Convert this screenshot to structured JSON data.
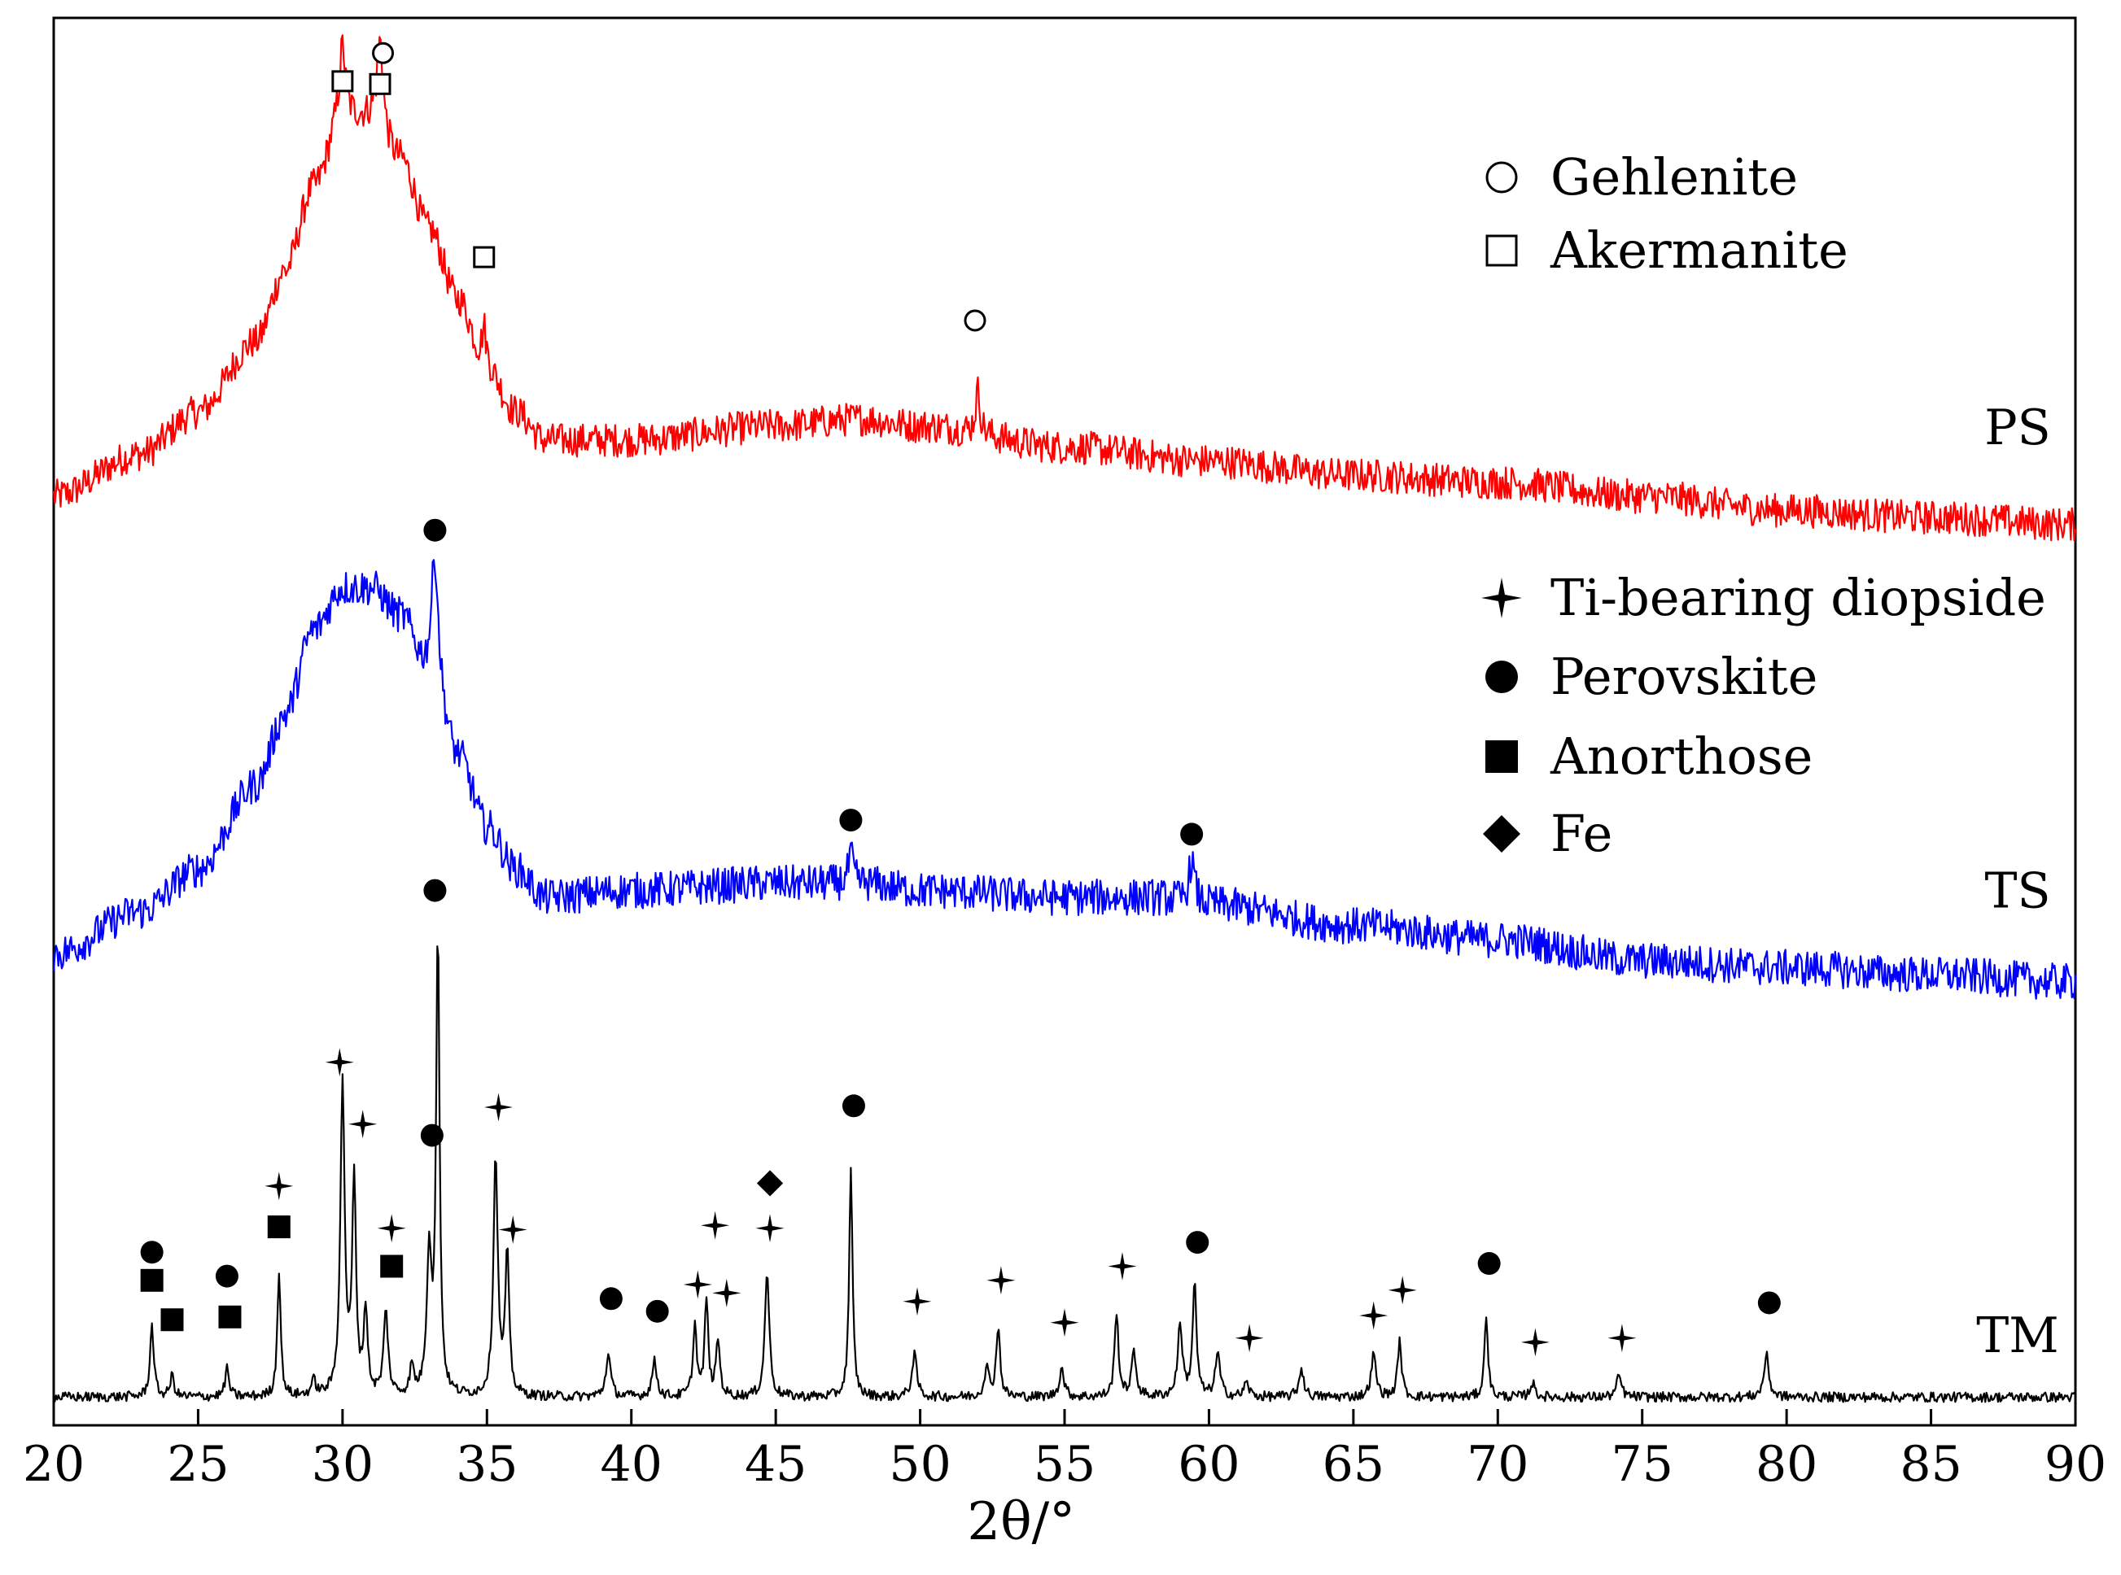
{
  "chart_data": {
    "type": "line",
    "xlabel": "2θ/°",
    "xlim": [
      20,
      90
    ],
    "xticks": [
      20,
      25,
      30,
      35,
      40,
      45,
      50,
      55,
      60,
      65,
      70,
      75,
      80,
      85,
      90
    ],
    "yaxis": "intensity (a.u., stacked, no ticks)",
    "series": [
      {
        "name": "PS",
        "color": "#ff0000",
        "baseline": 0.66,
        "noise": 0.012,
        "background": [
          [
            20,
            0.0
          ],
          [
            23,
            0.03
          ],
          [
            25,
            0.06
          ],
          [
            27,
            0.11
          ],
          [
            28,
            0.16
          ],
          [
            29,
            0.22
          ],
          [
            30,
            0.27
          ],
          [
            31,
            0.27
          ],
          [
            32,
            0.24
          ],
          [
            33,
            0.19
          ],
          [
            34,
            0.14
          ],
          [
            35,
            0.09
          ],
          [
            36,
            0.06
          ],
          [
            37,
            0.04
          ],
          [
            40,
            0.04
          ],
          [
            45,
            0.05
          ],
          [
            48,
            0.055
          ],
          [
            50,
            0.05
          ],
          [
            55,
            0.035
          ],
          [
            60,
            0.025
          ],
          [
            65,
            0.015
          ],
          [
            70,
            0.01
          ],
          [
            75,
            0.0
          ],
          [
            80,
            -0.01
          ],
          [
            85,
            -0.015
          ],
          [
            90,
            -0.02
          ]
        ],
        "peaks": [
          [
            30.0,
            0.05,
            0.12
          ],
          [
            31.3,
            0.06,
            0.12
          ],
          [
            34.9,
            0.03,
            0.1
          ],
          [
            52.0,
            0.03,
            0.1
          ]
        ]
      },
      {
        "name": "TS",
        "color": "#0000ff",
        "baseline": 0.335,
        "noise": 0.013,
        "background": [
          [
            20,
            0.0
          ],
          [
            23,
            0.03
          ],
          [
            25,
            0.06
          ],
          [
            27,
            0.12
          ],
          [
            28,
            0.17
          ],
          [
            29,
            0.23
          ],
          [
            30,
            0.26
          ],
          [
            31,
            0.26
          ],
          [
            32,
            0.24
          ],
          [
            33,
            0.2
          ],
          [
            34,
            0.14
          ],
          [
            35,
            0.09
          ],
          [
            36,
            0.06
          ],
          [
            37,
            0.04
          ],
          [
            40,
            0.045
          ],
          [
            45,
            0.05
          ],
          [
            48,
            0.05
          ],
          [
            50,
            0.045
          ],
          [
            55,
            0.04
          ],
          [
            58,
            0.04
          ],
          [
            60,
            0.035
          ],
          [
            65,
            0.02
          ],
          [
            70,
            0.01
          ],
          [
            75,
            -0.005
          ],
          [
            80,
            -0.01
          ],
          [
            85,
            -0.015
          ],
          [
            90,
            -0.02
          ]
        ],
        "peaks": [
          [
            33.2,
            0.09,
            0.14
          ],
          [
            47.6,
            0.02,
            0.1
          ],
          [
            59.4,
            0.03,
            0.12
          ]
        ]
      },
      {
        "name": "TM",
        "color": "#000000",
        "baseline": 0.02,
        "noise": 0.0035,
        "background": [
          [
            20,
            0.0
          ],
          [
            90,
            0.0
          ]
        ],
        "peaks": [
          [
            23.4,
            0.05,
            0.08
          ],
          [
            24.1,
            0.015,
            0.08
          ],
          [
            26.0,
            0.02,
            0.08
          ],
          [
            27.8,
            0.09,
            0.07
          ],
          [
            29.0,
            0.01,
            0.1
          ],
          [
            30.0,
            0.22,
            0.09
          ],
          [
            30.4,
            0.15,
            0.08
          ],
          [
            30.8,
            0.06,
            0.08
          ],
          [
            31.5,
            0.06,
            0.09
          ],
          [
            32.4,
            0.02,
            0.08
          ],
          [
            33.0,
            0.1,
            0.1
          ],
          [
            33.3,
            0.33,
            0.07
          ],
          [
            35.3,
            0.17,
            0.09
          ],
          [
            35.7,
            0.1,
            0.08
          ],
          [
            39.2,
            0.03,
            0.1
          ],
          [
            40.8,
            0.025,
            0.1
          ],
          [
            42.2,
            0.05,
            0.08
          ],
          [
            42.6,
            0.07,
            0.07
          ],
          [
            43.0,
            0.04,
            0.08
          ],
          [
            44.7,
            0.09,
            0.09
          ],
          [
            47.6,
            0.16,
            0.07
          ],
          [
            49.8,
            0.03,
            0.1
          ],
          [
            52.3,
            0.02,
            0.1
          ],
          [
            52.7,
            0.05,
            0.08
          ],
          [
            54.9,
            0.02,
            0.1
          ],
          [
            56.8,
            0.06,
            0.08
          ],
          [
            57.4,
            0.03,
            0.1
          ],
          [
            59.0,
            0.05,
            0.1
          ],
          [
            59.5,
            0.08,
            0.08
          ],
          [
            60.3,
            0.03,
            0.1
          ],
          [
            61.3,
            0.01,
            0.1
          ],
          [
            63.2,
            0.02,
            0.1
          ],
          [
            65.7,
            0.03,
            0.1
          ],
          [
            66.6,
            0.04,
            0.08
          ],
          [
            69.6,
            0.06,
            0.07
          ],
          [
            71.2,
            0.01,
            0.1
          ],
          [
            74.2,
            0.015,
            0.1
          ],
          [
            79.3,
            0.03,
            0.1
          ]
        ]
      }
    ],
    "series_labels": [
      "PS",
      "TS",
      "TM"
    ],
    "markers": [
      {
        "x": 30.0,
        "y": 0.955,
        "type": "open-square"
      },
      {
        "x": 31.4,
        "y": 0.975,
        "type": "open-circle"
      },
      {
        "x": 31.3,
        "y": 0.953,
        "type": "open-square"
      },
      {
        "x": 34.9,
        "y": 0.83,
        "type": "open-square"
      },
      {
        "x": 51.9,
        "y": 0.785,
        "type": "open-circle"
      },
      {
        "x": 33.2,
        "y": 0.636,
        "type": "filled-circle"
      },
      {
        "x": 47.6,
        "y": 0.43,
        "type": "filled-circle"
      },
      {
        "x": 59.4,
        "y": 0.42,
        "type": "filled-circle"
      },
      {
        "x": 33.2,
        "y": 0.38,
        "type": "filled-circle"
      },
      {
        "x": 23.4,
        "y": 0.123,
        "type": "filled-circle"
      },
      {
        "x": 23.4,
        "y": 0.103,
        "type": "filled-square"
      },
      {
        "x": 24.1,
        "y": 0.075,
        "type": "filled-square"
      },
      {
        "x": 26.0,
        "y": 0.106,
        "type": "filled-circle"
      },
      {
        "x": 26.1,
        "y": 0.077,
        "type": "filled-square"
      },
      {
        "x": 27.8,
        "y": 0.141,
        "type": "filled-square"
      },
      {
        "x": 27.8,
        "y": 0.17,
        "type": "star"
      },
      {
        "x": 29.9,
        "y": 0.258,
        "type": "star"
      },
      {
        "x": 30.7,
        "y": 0.214,
        "type": "star"
      },
      {
        "x": 31.7,
        "y": 0.14,
        "type": "star"
      },
      {
        "x": 31.7,
        "y": 0.113,
        "type": "filled-square"
      },
      {
        "x": 33.1,
        "y": 0.206,
        "type": "filled-circle"
      },
      {
        "x": 35.4,
        "y": 0.226,
        "type": "star"
      },
      {
        "x": 35.9,
        "y": 0.139,
        "type": "star"
      },
      {
        "x": 39.3,
        "y": 0.09,
        "type": "filled-circle"
      },
      {
        "x": 40.9,
        "y": 0.081,
        "type": "filled-circle"
      },
      {
        "x": 42.3,
        "y": 0.1,
        "type": "star"
      },
      {
        "x": 42.9,
        "y": 0.142,
        "type": "star"
      },
      {
        "x": 43.3,
        "y": 0.094,
        "type": "star"
      },
      {
        "x": 44.8,
        "y": 0.172,
        "type": "filled-diamond"
      },
      {
        "x": 44.8,
        "y": 0.14,
        "type": "star"
      },
      {
        "x": 47.7,
        "y": 0.227,
        "type": "filled-circle"
      },
      {
        "x": 49.9,
        "y": 0.088,
        "type": "star"
      },
      {
        "x": 52.8,
        "y": 0.103,
        "type": "star"
      },
      {
        "x": 55.0,
        "y": 0.073,
        "type": "star"
      },
      {
        "x": 57.0,
        "y": 0.113,
        "type": "star"
      },
      {
        "x": 59.6,
        "y": 0.13,
        "type": "filled-circle"
      },
      {
        "x": 61.4,
        "y": 0.062,
        "type": "star"
      },
      {
        "x": 65.7,
        "y": 0.078,
        "type": "star"
      },
      {
        "x": 66.7,
        "y": 0.096,
        "type": "star"
      },
      {
        "x": 69.7,
        "y": 0.115,
        "type": "filled-circle"
      },
      {
        "x": 71.3,
        "y": 0.059,
        "type": "star"
      },
      {
        "x": 74.3,
        "y": 0.062,
        "type": "star"
      },
      {
        "x": 79.4,
        "y": 0.087,
        "type": "filled-circle"
      }
    ],
    "legend": [
      {
        "label": "Gehlenite",
        "symbol": "open-circle",
        "placement": "top-right"
      },
      {
        "label": "Akermanite",
        "symbol": "open-square",
        "placement": "top-right"
      },
      {
        "label": "Ti-bearing diopside",
        "symbol": "star",
        "placement": "middle-right"
      },
      {
        "label": "Perovskite",
        "symbol": "filled-circle",
        "placement": "middle-right"
      },
      {
        "label": "Anorthose",
        "symbol": "filled-square",
        "placement": "middle-right"
      },
      {
        "label": "Fe",
        "symbol": "filled-diamond",
        "placement": "middle-right"
      }
    ]
  }
}
